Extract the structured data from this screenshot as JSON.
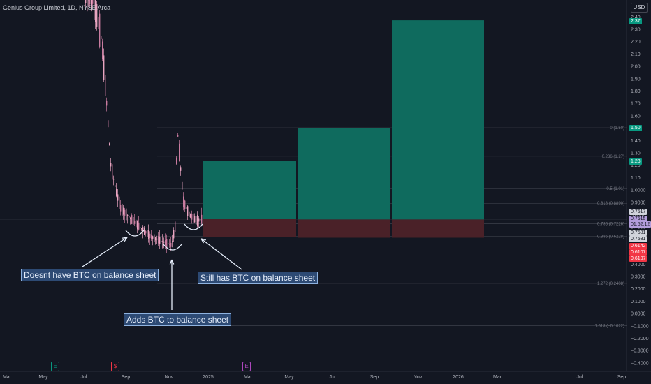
{
  "header": {
    "symbol_title": "Genius Group Limited, 1D, NYSE Arca",
    "currency": "USD"
  },
  "chart_data": {
    "type": "candlestick",
    "description_series": "Daily price, falling from above 2.5 to ~0.5, spike to 1.50 in Nov, then ~0.76",
    "price_axis": {
      "ticks": [
        "2.50",
        "2.40",
        "2.30",
        "2.20",
        "2.10",
        "2.00",
        "1.90",
        "1.80",
        "1.70",
        "1.60",
        "1.50",
        "1.40",
        "1.30",
        "1.20",
        "1.10",
        "1.0000",
        "0.9000",
        "0.8000",
        "0.7000",
        "0.6000",
        "0.5000",
        "0.4000",
        "0.3000",
        "0.2000",
        "0.1000",
        "0.0000",
        "−0.1000",
        "−0.2000",
        "−0.3000",
        "−0.4000"
      ]
    },
    "time_axis": {
      "labels": [
        "Mar",
        "May",
        "Jul",
        "Sep",
        "Nov",
        "2025",
        "Mar",
        "May",
        "Jul",
        "Sep",
        "Nov",
        "2026",
        "Mar",
        "Jul",
        "Sep"
      ]
    },
    "approx_price_path": [
      2.6,
      2.5,
      2.2,
      1.7,
      1.2,
      1.0,
      0.85,
      0.8,
      0.72,
      0.62,
      0.55,
      0.7,
      1.5,
      0.9,
      0.8,
      0.75,
      0.76
    ],
    "fib_levels": [
      {
        "label": "0 (1.50)"
      },
      {
        "label": "0.236 (1.27)"
      },
      {
        "label": "0.5 (1.01)"
      },
      {
        "label": "0.618 (0.8890)"
      },
      {
        "label": "0.786 (0.7226)"
      },
      {
        "label": "0.886 (0.6228)"
      },
      {
        "label": "1.272 (0.2408)"
      },
      {
        "label": "1.618 (−0.1022)"
      }
    ],
    "position_boxes": [
      {
        "entry": 0.7617,
        "target": 1.23,
        "stop": 0.6142
      },
      {
        "entry": 0.7581,
        "target": 1.5,
        "stop": 0.6107
      },
      {
        "entry": 0.7581,
        "target": 2.37,
        "stop": 0.6107
      }
    ],
    "price_badges": [
      {
        "text": "2.37",
        "color": "#089981"
      },
      {
        "text": "1.50",
        "color": "#089981"
      },
      {
        "text": "1.23",
        "color": "#089981"
      },
      {
        "text": "0.7617",
        "color": "#d1d4dc"
      },
      {
        "text": "0.7615",
        "color": "#b39ddb"
      },
      {
        "text": "01:52:12",
        "color": "#b39ddb"
      },
      {
        "text": "0.7581",
        "color": "#d1d4dc"
      },
      {
        "text": "0.7581",
        "color": "#d1d4dc"
      },
      {
        "text": "0.6142",
        "color": "#f23645"
      },
      {
        "text": "0.6107",
        "color": "#f23645"
      },
      {
        "text": "0.6107",
        "color": "#f23645"
      }
    ],
    "annotations": [
      "Doesnt have BTC on balance sheet",
      "Adds BTC to balance sheet",
      "Still has BTC on balance sheet"
    ],
    "events": [
      {
        "icon": "E",
        "color": "#089981"
      },
      {
        "icon": "$",
        "color": "#f23645"
      },
      {
        "icon": "E",
        "color": "#ab47bc"
      }
    ]
  }
}
